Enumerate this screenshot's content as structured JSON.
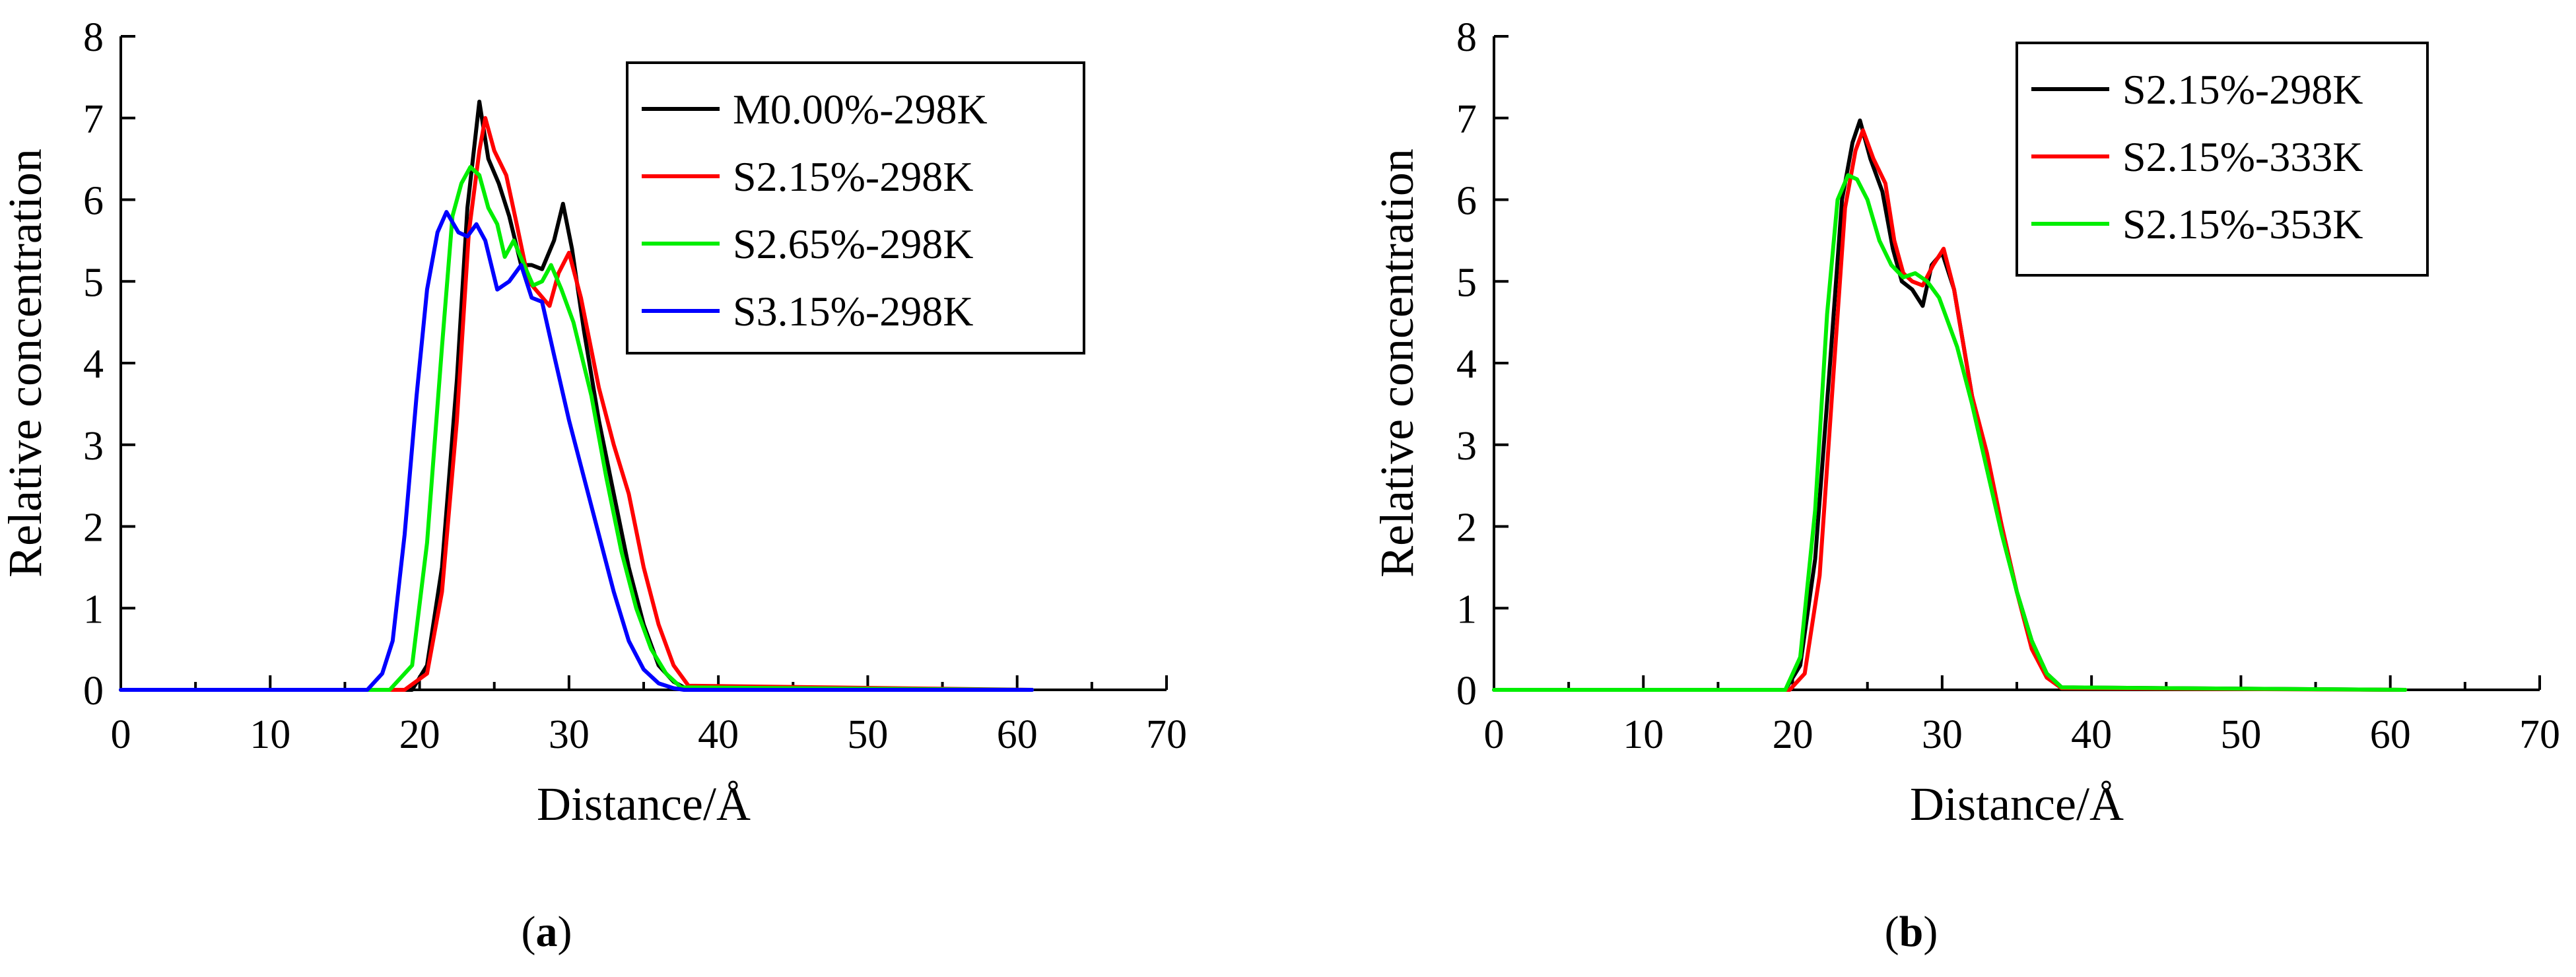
{
  "figure": {
    "captions": [
      "(a)",
      "(b)"
    ]
  },
  "chart_data": [
    {
      "type": "line",
      "panel": "a",
      "caption_letter": "a",
      "xlabel": "Distance/Å",
      "ylabel": "Relative concentration",
      "xlim": [
        0,
        70
      ],
      "ylim": [
        0,
        8
      ],
      "xticks": [
        0,
        10,
        20,
        30,
        40,
        50,
        60,
        70
      ],
      "yticks": [
        0,
        1,
        2,
        3,
        4,
        5,
        6,
        7,
        8
      ],
      "grid": false,
      "legend_position": "top-right",
      "series": [
        {
          "name": "M0.00%-298K",
          "color": "#000000",
          "x": [
            0,
            18,
            19.5,
            20.5,
            21.5,
            22.5,
            23.2,
            24.0,
            24.6,
            25.3,
            26.0,
            26.8,
            27.5,
            28.2,
            29.0,
            29.6,
            30.2,
            31.0,
            32.0,
            33.0,
            34.0,
            35.0,
            36.0,
            37.0,
            38.0,
            61
          ],
          "y": [
            0,
            0,
            0,
            0.3,
            1.5,
            3.8,
            5.9,
            7.2,
            6.5,
            6.2,
            5.8,
            5.2,
            5.2,
            5.15,
            5.5,
            5.95,
            5.4,
            4.4,
            3.3,
            2.4,
            1.5,
            0.8,
            0.3,
            0.1,
            0,
            0
          ]
        },
        {
          "name": "S2.15%-298K",
          "color": "#ff0000",
          "x": [
            0,
            19,
            20.5,
            21.5,
            22.5,
            23.3,
            24.0,
            24.4,
            25.0,
            25.8,
            26.5,
            27.3,
            28.0,
            28.7,
            29.3,
            30.0,
            30.8,
            32.0,
            33.0,
            34.0,
            35.0,
            36.0,
            37.0,
            38.0,
            61
          ],
          "y": [
            0,
            0,
            0.2,
            1.2,
            3.3,
            5.6,
            6.6,
            7.0,
            6.6,
            6.3,
            5.7,
            5.0,
            4.85,
            4.7,
            5.1,
            5.35,
            4.8,
            3.7,
            3.0,
            2.4,
            1.5,
            0.8,
            0.3,
            0.05,
            0
          ]
        },
        {
          "name": "S2.65%-298K",
          "color": "#00ee00",
          "x": [
            0,
            18,
            19.5,
            20.5,
            21.5,
            22.2,
            22.8,
            23.4,
            24.0,
            24.6,
            25.2,
            25.7,
            26.3,
            27.0,
            27.6,
            28.2,
            28.8,
            29.5,
            30.3,
            31.5,
            32.5,
            33.5,
            34.5,
            35.5,
            36.5,
            37.5,
            61
          ],
          "y": [
            0,
            0,
            0.3,
            1.8,
            4.2,
            5.8,
            6.2,
            6.4,
            6.3,
            5.9,
            5.7,
            5.3,
            5.5,
            5.2,
            4.95,
            5.0,
            5.2,
            4.9,
            4.5,
            3.6,
            2.6,
            1.7,
            1.0,
            0.5,
            0.2,
            0.03,
            0
          ]
        },
        {
          "name": "S3.15%-298K",
          "color": "#0000ff",
          "x": [
            0,
            16.5,
            17.5,
            18.2,
            19.0,
            19.8,
            20.5,
            21.2,
            21.8,
            22.6,
            23.2,
            23.8,
            24.4,
            25.2,
            26.0,
            26.8,
            27.5,
            28.2,
            29.0,
            30.0,
            31.0,
            32.0,
            33.0,
            34.0,
            35.0,
            36.0,
            37.0,
            37.7,
            61
          ],
          "y": [
            0,
            0,
            0.2,
            0.6,
            1.9,
            3.6,
            4.9,
            5.6,
            5.85,
            5.6,
            5.55,
            5.7,
            5.5,
            4.9,
            5.0,
            5.2,
            4.8,
            4.75,
            4.1,
            3.3,
            2.6,
            1.9,
            1.2,
            0.6,
            0.25,
            0.08,
            0.02,
            0,
            0
          ]
        }
      ]
    },
    {
      "type": "line",
      "panel": "b",
      "caption_letter": "b",
      "xlabel": "Distance/Å",
      "ylabel": "Relative concentration",
      "xlim": [
        0,
        70
      ],
      "ylim": [
        0,
        8
      ],
      "xticks": [
        0,
        10,
        20,
        30,
        40,
        50,
        60,
        70
      ],
      "yticks": [
        0,
        1,
        2,
        3,
        4,
        5,
        6,
        7,
        8
      ],
      "grid": false,
      "legend_position": "top-right",
      "series": [
        {
          "name": "S2.15%-298K",
          "color": "#000000",
          "x": [
            0,
            19.5,
            20.5,
            21.5,
            22.5,
            23.3,
            24.0,
            24.5,
            25.2,
            26.0,
            26.7,
            27.3,
            28.0,
            28.7,
            29.3,
            30.0,
            30.8,
            32.0,
            33.0,
            34.0,
            35.0,
            36.0,
            37.0,
            38.0,
            61
          ],
          "y": [
            0,
            0,
            0.3,
            1.6,
            4.0,
            6.0,
            6.7,
            6.97,
            6.5,
            6.1,
            5.4,
            5.0,
            4.9,
            4.7,
            5.2,
            5.35,
            4.9,
            3.6,
            2.8,
            2.0,
            1.2,
            0.6,
            0.2,
            0.03,
            0
          ]
        },
        {
          "name": "S2.15%-333K",
          "color": "#ff0000",
          "x": [
            1.5,
            2.5,
            19.8,
            20.8,
            21.8,
            22.7,
            23.5,
            24.2,
            24.7,
            25.4,
            26.2,
            26.8,
            27.4,
            28.0,
            28.7,
            29.4,
            30.1,
            30.8,
            32.0,
            33.0,
            34.0,
            35.0,
            36.0,
            37.0,
            38.0,
            61
          ],
          "y": [
            0,
            0,
            0,
            0.2,
            1.4,
            3.8,
            5.9,
            6.6,
            6.85,
            6.5,
            6.2,
            5.5,
            5.1,
            5.0,
            4.95,
            5.2,
            5.4,
            4.9,
            3.6,
            2.9,
            2.0,
            1.2,
            0.5,
            0.15,
            0.02,
            0
          ]
        },
        {
          "name": "S2.15%-353K",
          "color": "#00ee00",
          "x": [
            0,
            19.5,
            20.5,
            21.5,
            22.3,
            23.0,
            23.7,
            24.3,
            25.0,
            25.8,
            26.6,
            27.4,
            28.2,
            29.0,
            29.8,
            31.0,
            32.0,
            33.0,
            34.0,
            35.0,
            36.0,
            37.0,
            38.0,
            61
          ],
          "y": [
            0,
            0,
            0.4,
            2.2,
            4.6,
            6.0,
            6.3,
            6.25,
            6.0,
            5.5,
            5.2,
            5.05,
            5.1,
            5.0,
            4.8,
            4.2,
            3.5,
            2.7,
            1.9,
            1.2,
            0.6,
            0.2,
            0.03,
            0
          ]
        }
      ]
    }
  ]
}
